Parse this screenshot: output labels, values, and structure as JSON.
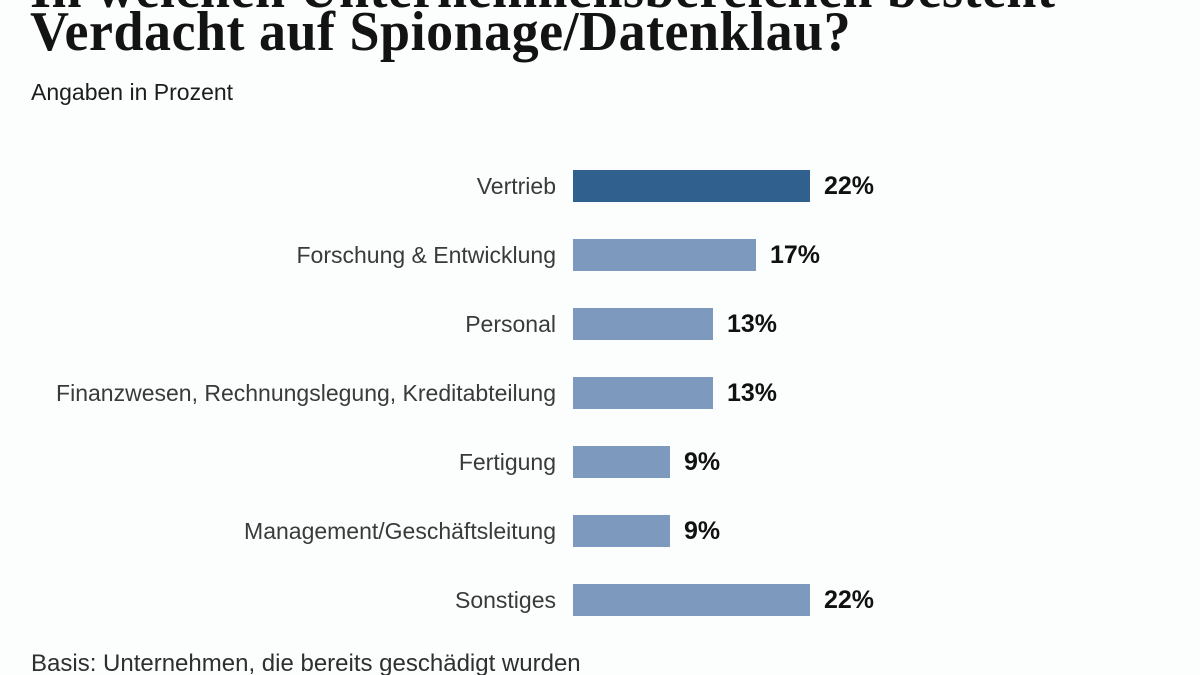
{
  "colors": {
    "bar_emphasis": "#2f608e",
    "bar_default": "#7d9abe",
    "background": "#fcfdfd",
    "title_text": "#131313",
    "label_text": "#3a3a3a",
    "value_text": "#111111"
  },
  "chart_data": {
    "type": "bar",
    "orientation": "horizontal",
    "title_line1_partially_visible": "In welchen Unternehmensbereichen besteht",
    "title": "Verdacht auf Spionage/Datenklau?",
    "subtitle": "Angaben in Prozent",
    "footnote": "Basis: Unternehmen, die bereits geschädigt wurden",
    "value_suffix": "%",
    "max_value": 22,
    "xlim": [
      0,
      22
    ],
    "grid": false,
    "legend": false,
    "categories": [
      "Vertrieb",
      "Forschung & Entwicklung",
      "Personal",
      "Finanzwesen, Rechnungslegung, Kreditabteilung",
      "Fertigung",
      "Management/Geschäftsleitung",
      "Sonstiges"
    ],
    "values": [
      22,
      17,
      13,
      13,
      9,
      9,
      22
    ],
    "items": [
      {
        "label": "Vertrieb",
        "value": 22,
        "emphasis": true
      },
      {
        "label": "Forschung & Entwicklung",
        "value": 17,
        "emphasis": false
      },
      {
        "label": "Personal",
        "value": 13,
        "emphasis": false
      },
      {
        "label": "Finanzwesen, Rechnungslegung, Kreditabteilung",
        "value": 13,
        "emphasis": false
      },
      {
        "label": "Fertigung",
        "value": 9,
        "emphasis": false
      },
      {
        "label": "Management/Geschäftsleitung",
        "value": 9,
        "emphasis": false
      },
      {
        "label": "Sonstiges",
        "value": 22,
        "emphasis": false
      }
    ]
  }
}
